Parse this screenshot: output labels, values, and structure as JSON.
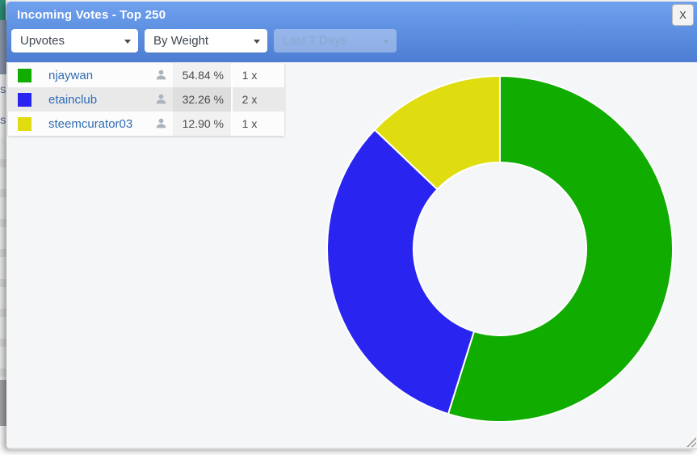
{
  "modal": {
    "title": "Incoming Votes - Top 250",
    "close_label": "X",
    "filters": [
      {
        "value": "Upvotes",
        "disabled": false
      },
      {
        "value": "By Weight",
        "disabled": false
      },
      {
        "value": "Last 7 Days",
        "disabled": true
      }
    ]
  },
  "legend": {
    "rows": [
      {
        "name": "njaywan",
        "color": "#10ac00",
        "pct": "54.84 %",
        "count": "1 x",
        "selected": false
      },
      {
        "name": "etainclub",
        "color": "#2a24f0",
        "pct": "32.26 %",
        "count": "2 x",
        "selected": true
      },
      {
        "name": "steemcurator03",
        "color": "#dfdc10",
        "pct": "12.90 %",
        "count": "1 x",
        "selected": false
      }
    ]
  },
  "background_fragments": [
    "S",
    "S"
  ],
  "chart_data": {
    "type": "pie",
    "subtype": "donut",
    "title": "Incoming Votes - Top 250",
    "labels": [
      "njaywan",
      "etainclub",
      "steemcurator03"
    ],
    "values": [
      54.84,
      32.26,
      12.9
    ],
    "counts": [
      1,
      2,
      1
    ],
    "colors": [
      "#10ac00",
      "#2a24f0",
      "#dfdc10"
    ],
    "inner_radius_ratio": 0.5,
    "start_angle_deg": 0,
    "direction": "clockwise",
    "legend_position": "top-left",
    "slice_gap_color": "#ffffff"
  },
  "theme": {
    "header_gradient_top": "#6fa1ef",
    "header_gradient_bottom": "#4c7dd2",
    "link_blue": "#2f6bb3",
    "body_background": "#f5f6f7"
  }
}
